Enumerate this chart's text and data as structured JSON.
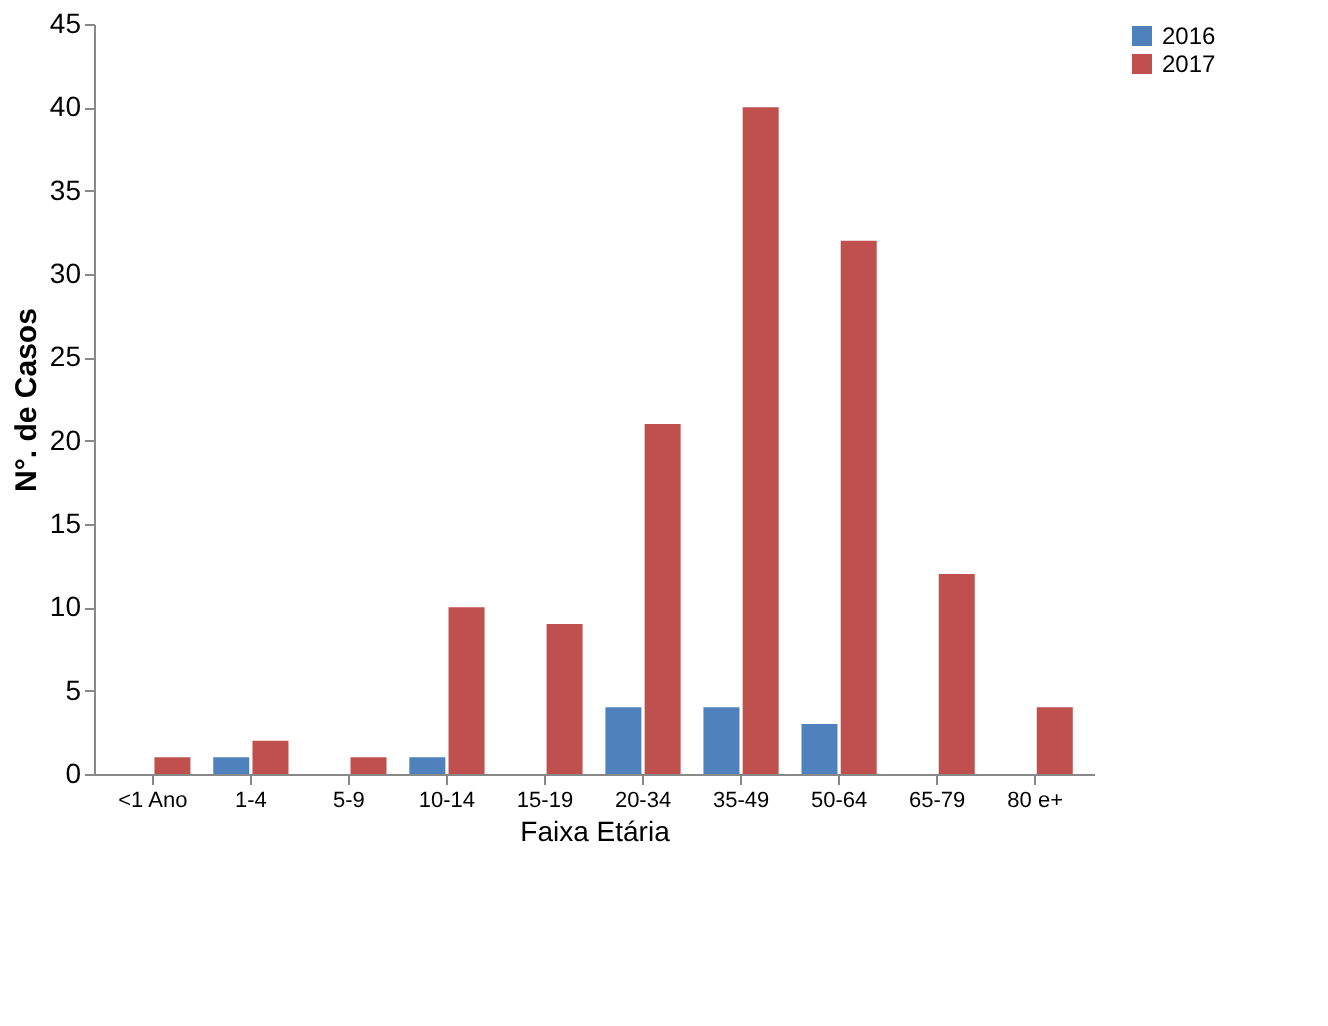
{
  "chart_data": {
    "type": "bar",
    "xlabel": "Faixa Etária",
    "ylabel": "N°. de Casos",
    "categories": [
      "<1 Ano",
      "1-4",
      "5-9",
      "10-14",
      "15-19",
      "20-34",
      "35-49",
      "50-64",
      "65-79",
      "80 e+"
    ],
    "series": [
      {
        "name": "2016",
        "color": "#4f81bd",
        "values": [
          0,
          1,
          0,
          1,
          0,
          4,
          4,
          3,
          0,
          0
        ]
      },
      {
        "name": "2017",
        "color": "#c0504d",
        "values": [
          1,
          2,
          1,
          10,
          9,
          21,
          40,
          32,
          12,
          4
        ]
      }
    ],
    "ylim": [
      0,
      45
    ],
    "yticks": [
      0,
      5,
      10,
      15,
      20,
      25,
      30,
      35,
      40,
      45
    ],
    "grid": false,
    "legend": "right"
  }
}
